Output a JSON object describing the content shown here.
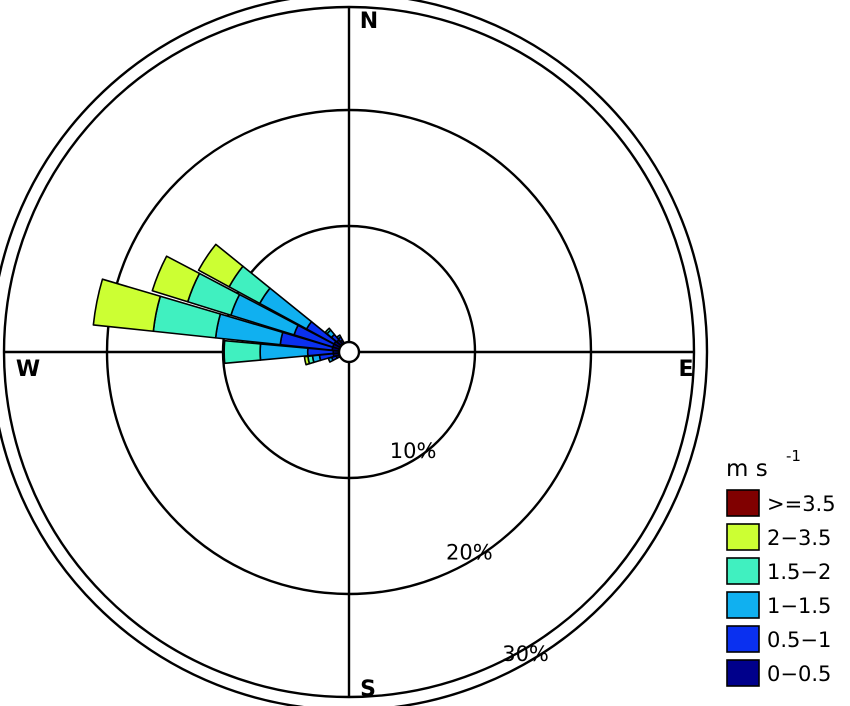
{
  "chart_data": {
    "type": "windrose",
    "directions": [
      "N",
      "E",
      "S",
      "W"
    ],
    "rings": [
      {
        "value": 10,
        "label": "10%"
      },
      {
        "value": 20,
        "label": "20%"
      },
      {
        "value": 30,
        "label": "30%"
      }
    ],
    "legend": {
      "title": "m s",
      "title_sup": "-1",
      "placement": "bottom-right",
      "bins": [
        {
          "label": ">=3.5",
          "color": "#800000"
        },
        {
          "label": "2−3.5",
          "color": "#ccff33"
        },
        {
          "label": "1.5−2",
          "color": "#40f0c0"
        },
        {
          "label": "1−1.5",
          "color": "#10b0f0"
        },
        {
          "label": "0.5−1",
          "color": "#0a30f0"
        },
        {
          "label": "0−0.5",
          "color": "#00008b"
        }
      ]
    },
    "stack_order": [
      "0−0.5",
      "0.5−1",
      "1−1.5",
      "1.5−2",
      "2−3.5",
      ">=3.5"
    ],
    "sectors": [
      {
        "direction_deg": 270.0,
        "values": [
          0.5,
          2.2,
          4.1,
          3.1,
          0.0,
          0.0
        ]
      },
      {
        "direction_deg": 281.25,
        "values": [
          0.6,
          4.5,
          5.6,
          5.4,
          5.2,
          0.0
        ]
      },
      {
        "direction_deg": 292.5,
        "values": [
          0.6,
          3.5,
          5.7,
          3.9,
          3.2,
          0.0
        ]
      },
      {
        "direction_deg": 303.75,
        "values": [
          0.6,
          2.7,
          4.6,
          3.0,
          3.0,
          0.0
        ]
      },
      {
        "direction_deg": 315.0,
        "values": [
          0.5,
          0.6,
          0.5,
          0.2,
          0.0,
          0.0
        ]
      },
      {
        "direction_deg": 326.25,
        "values": [
          0.3,
          0.3,
          0.2,
          0.0,
          0.0,
          0.0
        ]
      },
      {
        "direction_deg": 258.75,
        "values": [
          0.5,
          1.2,
          0.6,
          0.4,
          0.3,
          0.0
        ]
      },
      {
        "direction_deg": 247.5,
        "values": [
          0.3,
          0.4,
          0.3,
          0.0,
          0.0,
          0.0
        ]
      }
    ]
  }
}
